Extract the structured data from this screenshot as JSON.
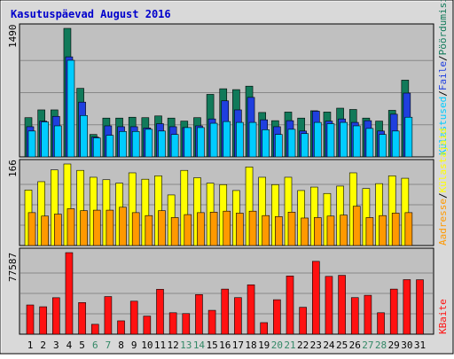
{
  "title": "Kasutuspäevad August 2016",
  "colors": {
    "frame_bg": "#d9d9d9",
    "panel_bg": "#c0c0c0",
    "grid": "#888888",
    "title": "#0000cc",
    "tick_normal": "#000000",
    "tick_weekend": "#338866",
    "hits_fill": "#117a5a",
    "files_fill": "#1f3fdf",
    "pages_fill": "#00ccff",
    "visits_fill": "#ffff00",
    "sites_fill": "#ff9900",
    "kbytes_fill": "#ff1111"
  },
  "chart_data": [
    {
      "type": "bar",
      "panel": "hits-files-pages",
      "ymax_label": "1490",
      "ymax": 1490,
      "categories": [
        "1",
        "2",
        "3",
        "4",
        "5",
        "6",
        "7",
        "8",
        "9",
        "10",
        "11",
        "12",
        "13",
        "14",
        "15",
        "16",
        "17",
        "18",
        "19",
        "20",
        "21",
        "22",
        "23",
        "24",
        "25",
        "26",
        "27",
        "28",
        "29",
        "30",
        "31"
      ],
      "weekend_days": [
        "6",
        "7",
        "13",
        "14",
        "20",
        "21",
        "27",
        "28"
      ],
      "legend": [
        "Külastused",
        "/",
        "Faile",
        "/",
        "Pöördumisi"
      ],
      "series": [
        {
          "name": "Pöördumisi",
          "values": [
            455,
            545,
            545,
            1490,
            795,
            260,
            450,
            450,
            460,
            455,
            475,
            450,
            415,
            455,
            725,
            790,
            780,
            820,
            515,
            420,
            520,
            450,
            535,
            520,
            565,
            550,
            450,
            415,
            540,
            890,
            0
          ]
        },
        {
          "name": "Faile",
          "values": [
            350,
            415,
            470,
            1160,
            635,
            230,
            360,
            350,
            350,
            335,
            385,
            350,
            340,
            360,
            440,
            650,
            545,
            690,
            430,
            350,
            420,
            300,
            530,
            415,
            440,
            400,
            420,
            300,
            495,
            740,
            0
          ]
        },
        {
          "name": "Külastused",
          "values": [
            300,
            405,
            360,
            1120,
            480,
            220,
            250,
            295,
            295,
            320,
            300,
            260,
            340,
            340,
            390,
            410,
            400,
            400,
            315,
            260,
            320,
            270,
            400,
            385,
            400,
            360,
            330,
            260,
            300,
            460,
            0
          ]
        }
      ]
    },
    {
      "type": "bar",
      "panel": "visits-sites",
      "ymax_label": "166",
      "ymax": 166,
      "categories": [
        "1",
        "2",
        "3",
        "4",
        "5",
        "6",
        "7",
        "8",
        "9",
        "10",
        "11",
        "12",
        "13",
        "14",
        "15",
        "16",
        "17",
        "18",
        "19",
        "20",
        "21",
        "22",
        "23",
        "24",
        "25",
        "26",
        "27",
        "28",
        "29",
        "30",
        "31"
      ],
      "legend": [
        "Aadresse",
        "/",
        "Külastajaid"
      ],
      "series": [
        {
          "name": "Külastajaid",
          "values": [
            113,
            130,
            154,
            166,
            153,
            139,
            134,
            127,
            148,
            135,
            142,
            103,
            153,
            138,
            127,
            124,
            112,
            160,
            139,
            124,
            139,
            112,
            119,
            106,
            121,
            148,
            116,
            126,
            142,
            137,
            0
          ]
        },
        {
          "name": "Aadresse",
          "values": [
            67,
            60,
            64,
            75,
            71,
            72,
            72,
            78,
            67,
            61,
            71,
            57,
            63,
            67,
            68,
            70,
            66,
            70,
            61,
            59,
            68,
            56,
            57,
            60,
            62,
            80,
            57,
            61,
            66,
            67,
            0
          ]
        }
      ]
    },
    {
      "type": "bar",
      "panel": "kbytes",
      "ymax_label": "77587",
      "ymax": 77587,
      "categories": [
        "1",
        "2",
        "3",
        "4",
        "5",
        "6",
        "7",
        "8",
        "9",
        "10",
        "11",
        "12",
        "13",
        "14",
        "15",
        "16",
        "17",
        "18",
        "19",
        "20",
        "21",
        "22",
        "23",
        "24",
        "25",
        "26",
        "27",
        "28",
        "29",
        "30",
        "31"
      ],
      "legend": [
        "KBaite"
      ],
      "series": [
        {
          "name": "KBaite",
          "values": [
            27800,
            26100,
            34700,
            77587,
            30100,
            9400,
            35800,
            12700,
            31400,
            17200,
            42700,
            20400,
            19600,
            37700,
            22700,
            42900,
            34800,
            47000,
            11000,
            32800,
            55400,
            25600,
            69300,
            55000,
            56000,
            34800,
            37000,
            20400,
            42900,
            51900,
            51800
          ]
        }
      ]
    }
  ]
}
